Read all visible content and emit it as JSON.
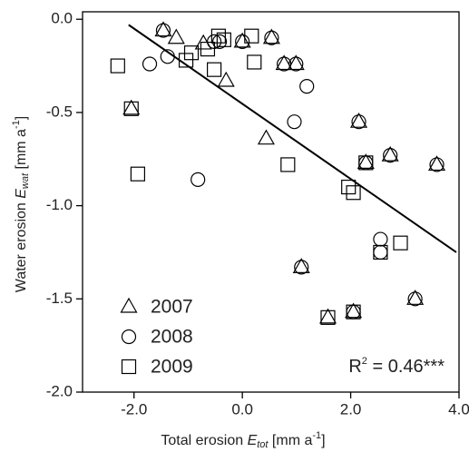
{
  "chart_data": {
    "type": "scatter",
    "x_label": [
      "Total erosion ",
      "E",
      "tot",
      " [mm a",
      "-1",
      "]"
    ],
    "y_label": [
      "Water erosion ",
      "E",
      "wat",
      " [mm a",
      "-1",
      "]"
    ],
    "annotation": [
      "R",
      "2",
      " = 0.46***"
    ],
    "xlim": [
      -2.95,
      4.0
    ],
    "ylim": [
      -2.0,
      0.04
    ],
    "xticks": [
      {
        "value": -2,
        "label": "-2.0"
      },
      {
        "value": 0,
        "label": "0.0"
      },
      {
        "value": 2,
        "label": "2.0"
      },
      {
        "value": 4,
        "label": "4.0"
      }
    ],
    "yticks": [
      {
        "value": 0,
        "label": "0.0"
      },
      {
        "value": -0.5,
        "label": "-0.5"
      },
      {
        "value": -1,
        "label": "-1.0"
      },
      {
        "value": -1.5,
        "label": "-1.5"
      },
      {
        "value": -2,
        "label": "-2.0"
      }
    ],
    "color": "#000000",
    "legend": "lower left",
    "series": [
      {
        "name": "2007",
        "marker": "triangle",
        "x": [
          -1.46,
          -1.22,
          -2.05,
          -0.72,
          -0.3,
          0.0,
          0.54,
          0.77,
          0.99,
          0.44,
          2.15,
          2.28,
          2.73,
          3.59,
          1.09,
          3.19,
          1.58,
          2.05
        ],
        "values": [
          -0.06,
          -0.1,
          -0.48,
          -0.13,
          -0.33,
          -0.12,
          -0.1,
          -0.24,
          -0.24,
          -0.64,
          -0.55,
          -0.77,
          -0.73,
          -0.78,
          -1.33,
          -1.5,
          -1.6,
          -1.57
        ]
      },
      {
        "name": "2008",
        "marker": "circle",
        "x": [
          -1.46,
          -1.71,
          -1.38,
          -0.52,
          -0.42,
          0.0,
          0.54,
          0.77,
          0.99,
          1.19,
          0.96,
          -0.82,
          2.15,
          2.28,
          2.73,
          3.59,
          1.09,
          2.55,
          2.55,
          3.19,
          2.05
        ],
        "values": [
          -0.06,
          -0.24,
          -0.2,
          -0.12,
          -0.12,
          -0.12,
          -0.1,
          -0.24,
          -0.24,
          -0.36,
          -0.55,
          -0.86,
          -0.55,
          -0.77,
          -0.73,
          -0.78,
          -1.33,
          -1.18,
          -1.25,
          -1.5,
          -1.57
        ]
      },
      {
        "name": "2009",
        "marker": "square",
        "x": [
          -2.3,
          -2.05,
          -1.04,
          -0.94,
          -0.64,
          -0.44,
          -0.34,
          -0.52,
          0.17,
          0.22,
          0.84,
          -1.93,
          2.28,
          1.96,
          2.05,
          2.55,
          2.92,
          1.58,
          2.05
        ],
        "values": [
          -0.25,
          -0.48,
          -0.22,
          -0.18,
          -0.16,
          -0.09,
          -0.11,
          -0.27,
          -0.09,
          -0.23,
          -0.78,
          -0.83,
          -0.77,
          -0.9,
          -0.93,
          -1.25,
          -1.2,
          -1.6,
          -1.57
        ]
      }
    ],
    "regression": {
      "x": [
        -2.1,
        3.95
      ],
      "values": [
        -0.03,
        -1.25
      ]
    }
  }
}
